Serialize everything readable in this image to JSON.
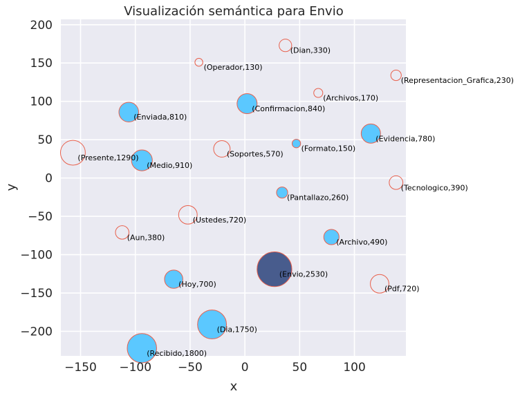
{
  "chart_data": {
    "type": "scatter",
    "title": "Visualización semántica para Envio",
    "xlabel": "x",
    "ylabel": "y",
    "xlim": [
      -168,
      147
    ],
    "ylim": [
      -232,
      207
    ],
    "xticks": [
      -150,
      -100,
      -50,
      0,
      50,
      100
    ],
    "yticks": [
      -200,
      -150,
      -100,
      -50,
      0,
      50,
      100,
      150,
      200
    ],
    "grid": true,
    "colors": {
      "background": "#eaeaf2",
      "grid": "#ffffff",
      "filled": "#5bc8ff",
      "center": "#485c8d",
      "edge": "#e8604c"
    },
    "points": [
      {
        "word": "Dian",
        "value": 330,
        "x": 37,
        "y": 173,
        "filled": false,
        "label": "(Dian,330)"
      },
      {
        "word": "Operador",
        "value": 130,
        "x": -42,
        "y": 151,
        "filled": false,
        "label": "(Operador,130)"
      },
      {
        "word": "Representacion_Grafica",
        "value": 230,
        "x": 138,
        "y": 134,
        "filled": false,
        "label": "(Representacion_Grafica,230)"
      },
      {
        "word": "Archivos",
        "value": 170,
        "x": 67,
        "y": 111,
        "filled": false,
        "label": "(Archivos,170)"
      },
      {
        "word": "Confirmacion",
        "value": 840,
        "x": 2,
        "y": 97,
        "filled": true,
        "label": "(Confirmacion,840)"
      },
      {
        "word": "Enviada",
        "value": 810,
        "x": -106,
        "y": 86,
        "filled": true,
        "label": "(Enviada,810)"
      },
      {
        "word": "Evidencia",
        "value": 780,
        "x": 115,
        "y": 58,
        "filled": true,
        "label": "(Evidencia,780)"
      },
      {
        "word": "Formato",
        "value": 150,
        "x": 47,
        "y": 45,
        "filled": true,
        "label": "(Formato,150)"
      },
      {
        "word": "Soportes",
        "value": 570,
        "x": -21,
        "y": 38,
        "filled": false,
        "label": "(Soportes,570)"
      },
      {
        "word": "Presente",
        "value": 1290,
        "x": -157,
        "y": 33,
        "filled": false,
        "label": "(Presente,1290)"
      },
      {
        "word": "Medio",
        "value": 910,
        "x": -94,
        "y": 23,
        "filled": true,
        "label": "(Medio,910)"
      },
      {
        "word": "Tecnologico",
        "value": 390,
        "x": 138,
        "y": -6,
        "filled": false,
        "label": "(Tecnologico,390)"
      },
      {
        "word": "Pantallazo",
        "value": 260,
        "x": 34,
        "y": -19,
        "filled": true,
        "label": "(Pantallazo,260)"
      },
      {
        "word": "Ustedes",
        "value": 720,
        "x": -52,
        "y": -48,
        "filled": false,
        "label": "(Ustedes,720)"
      },
      {
        "word": "Aun",
        "value": 380,
        "x": -112,
        "y": -71,
        "filled": false,
        "label": "(Aun,380)"
      },
      {
        "word": "Archivo",
        "value": 490,
        "x": 79,
        "y": -77,
        "filled": true,
        "label": "(Archivo,490)"
      },
      {
        "word": "Envio",
        "value": 2530,
        "x": 27,
        "y": -119,
        "filled": true,
        "center": true,
        "label": "(Envio,2530)"
      },
      {
        "word": "Hoy",
        "value": 700,
        "x": -65,
        "y": -132,
        "filled": true,
        "label": "(Hoy,700)"
      },
      {
        "word": "Pdf",
        "value": 720,
        "x": 123,
        "y": -138,
        "filled": false,
        "label": "(Pdf,720)"
      },
      {
        "word": "Dia",
        "value": 1750,
        "x": -30,
        "y": -191,
        "filled": true,
        "label": "(Dia,1750)"
      },
      {
        "word": "Recibido",
        "value": 1800,
        "x": -94,
        "y": -222,
        "filled": true,
        "label": "(Recibido,1800)"
      }
    ]
  }
}
